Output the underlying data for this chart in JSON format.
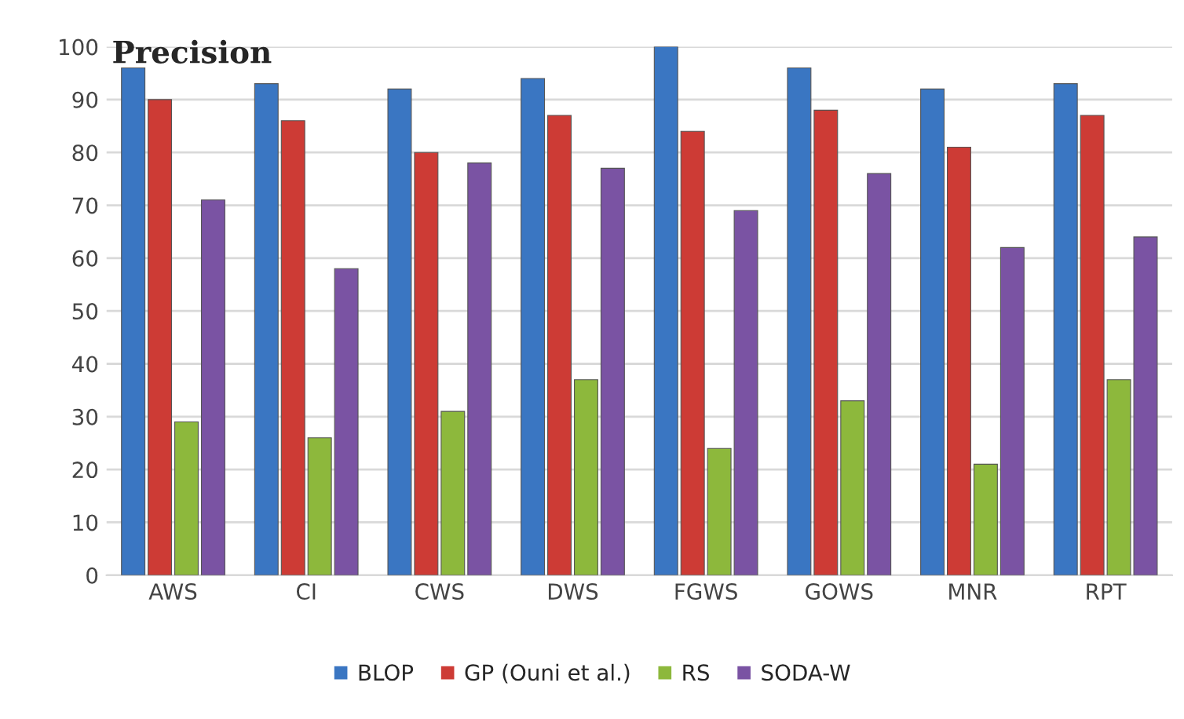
{
  "chart_data": {
    "type": "bar",
    "title": "Precision",
    "categories": [
      "AWS",
      "CI",
      "CWS",
      "DWS",
      "FGWS",
      "GOWS",
      "MNR",
      "RPT"
    ],
    "series": [
      {
        "name": "BLOP",
        "color": "#3a76c2",
        "values": [
          96,
          93,
          92,
          94,
          100,
          96,
          92,
          93
        ]
      },
      {
        "name": "GP (Ouni et al.)",
        "color": "#cd3b35",
        "values": [
          90,
          86,
          80,
          87,
          84,
          88,
          81,
          87
        ]
      },
      {
        "name": "RS",
        "color": "#8db83c",
        "values": [
          29,
          26,
          31,
          37,
          24,
          33,
          21,
          37
        ]
      },
      {
        "name": "SODA-W",
        "color": "#7a53a3",
        "values": [
          71,
          58,
          78,
          77,
          69,
          76,
          62,
          64
        ]
      }
    ],
    "ylim": [
      0,
      100
    ],
    "yticks": [
      0,
      10,
      20,
      30,
      40,
      50,
      60,
      70,
      80,
      90,
      100
    ],
    "grid": "y",
    "legend": "bottom"
  }
}
